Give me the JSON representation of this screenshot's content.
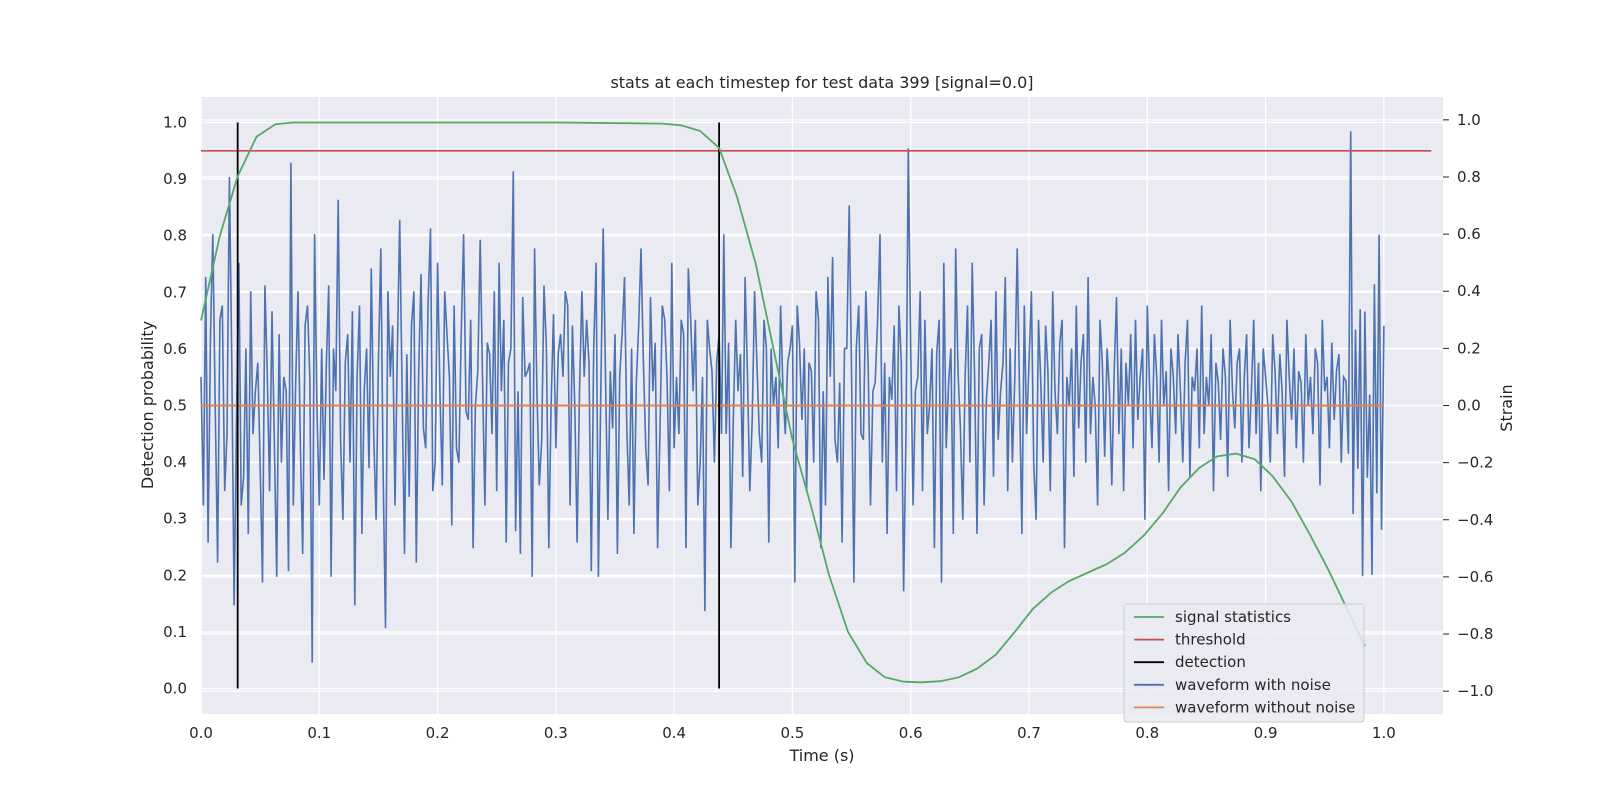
{
  "chart_data": {
    "type": "line",
    "title": "stats at each timestep for test data 399 [signal=0.0]",
    "xlabel": "Time (s)",
    "ylabel": "Detection probability",
    "y2label": "Strain",
    "xlim": [
      0.0,
      1.05
    ],
    "ylim": [
      -0.045,
      1.045
    ],
    "y2lim": [
      -1.08,
      1.08
    ],
    "grid": true,
    "legend_position": "lower-right",
    "x_ticks": [
      "0.0",
      "0.1",
      "0.2",
      "0.3",
      "0.4",
      "0.5",
      "0.6",
      "0.7",
      "0.8",
      "0.9",
      "1.0"
    ],
    "y_ticks": [
      "0.0",
      "0.1",
      "0.2",
      "0.3",
      "0.4",
      "0.5",
      "0.6",
      "0.7",
      "0.8",
      "0.9",
      "1.0"
    ],
    "y2_ticks": [
      "−1.0",
      "−0.8",
      "−0.6",
      "−0.4",
      "−0.2",
      "0.0",
      "0.2",
      "0.4",
      "0.6",
      "0.8",
      "1.0"
    ],
    "series": [
      {
        "name": "signal statistics",
        "axis": "left",
        "color": "#55a868",
        "x": [
          0.0,
          0.016,
          0.031,
          0.047,
          0.063,
          0.078,
          0.094,
          0.11,
          0.2,
          0.3,
          0.39,
          0.406,
          0.422,
          0.438,
          0.453,
          0.469,
          0.484,
          0.5,
          0.516,
          0.531,
          0.547,
          0.563,
          0.578,
          0.594,
          0.609,
          0.625,
          0.641,
          0.656,
          0.672,
          0.688,
          0.703,
          0.719,
          0.734,
          0.75,
          0.766,
          0.781,
          0.797,
          0.813,
          0.828,
          0.844,
          0.859,
          0.875,
          0.891,
          0.906,
          0.922,
          0.938,
          0.953,
          0.969,
          0.984
        ],
        "y": [
          0.65,
          0.8,
          0.905,
          0.975,
          0.997,
          1.0,
          1.0,
          1.0,
          1.0,
          1.0,
          0.998,
          0.995,
          0.985,
          0.955,
          0.87,
          0.75,
          0.6,
          0.44,
          0.32,
          0.2,
          0.1,
          0.045,
          0.02,
          0.012,
          0.011,
          0.013,
          0.02,
          0.035,
          0.06,
          0.1,
          0.14,
          0.17,
          0.19,
          0.205,
          0.22,
          0.24,
          0.27,
          0.31,
          0.355,
          0.39,
          0.41,
          0.415,
          0.405,
          0.375,
          0.33,
          0.27,
          0.21,
          0.14,
          0.075
        ]
      },
      {
        "name": "threshold",
        "axis": "left",
        "color": "#c44e52",
        "x": [
          0.0,
          1.04
        ],
        "y": [
          0.95,
          0.95
        ]
      },
      {
        "name": "detection",
        "axis": "left",
        "color": "#000000",
        "segments": [
          {
            "x": 0.031,
            "y0": 0.0,
            "y1": 1.0
          },
          {
            "x": 0.438,
            "y0": 0.0,
            "y1": 1.0
          }
        ]
      },
      {
        "name": "waveform with noise",
        "axis": "right",
        "color": "#4c72b0",
        "x_start": 0.0,
        "x_step": 0.002,
        "y": [
          0.1,
          -0.35,
          0.45,
          -0.48,
          0.25,
          0.6,
          0.0,
          -0.55,
          0.3,
          0.35,
          -0.3,
          -0.1,
          0.8,
          0.15,
          -0.7,
          -0.05,
          0.5,
          -0.35,
          -0.25,
          0.2,
          -0.45,
          0.4,
          -0.1,
          0.05,
          0.15,
          -0.2,
          -0.62,
          0.42,
          0.12,
          -0.3,
          0.33,
          -0.12,
          -0.6,
          0.25,
          -0.2,
          0.1,
          0.05,
          -0.58,
          0.85,
          -0.35,
          0.07,
          0.4,
          -0.15,
          -0.52,
          0.28,
          0.35,
          0.1,
          -0.9,
          0.6,
          0.0,
          -0.35,
          0.2,
          -0.26,
          0.15,
          0.42,
          -0.6,
          0.2,
          0.05,
          0.72,
          -0.12,
          -0.4,
          0.15,
          0.25,
          -0.2,
          0.33,
          -0.7,
          0.1,
          0.35,
          -0.45,
          0.05,
          0.2,
          -0.22,
          0.48,
          -0.1,
          -0.4,
          0.15,
          0.55,
          -0.25,
          -0.78,
          0.4,
          0.1,
          0.28,
          -0.35,
          0.2,
          0.65,
          0.05,
          -0.52,
          0.18,
          -0.32,
          0.28,
          0.4,
          -0.55,
          0.1,
          0.46,
          -0.08,
          -0.15,
          0.36,
          0.62,
          -0.3,
          -0.2,
          0.5,
          0.05,
          -0.28,
          0.4,
          0.25,
          0.1,
          -0.42,
          0.35,
          -0.15,
          -0.2,
          0.25,
          0.6,
          -0.02,
          -0.05,
          0.3,
          -0.5,
          0.0,
          0.12,
          0.58,
          0.1,
          -0.35,
          0.22,
          0.18,
          -0.1,
          0.4,
          -0.3,
          0.5,
          0.05,
          0.3,
          -0.48,
          0.15,
          0.2,
          0.82,
          -0.44,
          0.05,
          -0.52,
          0.38,
          0.1,
          0.12,
          0.15,
          -0.6,
          0.55,
          0.05,
          -0.28,
          -0.12,
          0.42,
          0.2,
          -0.5,
          0.0,
          0.32,
          -0.15,
          0.18,
          0.25,
          0.1,
          0.4,
          0.35,
          -0.35,
          0.28,
          0.0,
          -0.48,
          0.05,
          0.4,
          0.1,
          0.3,
          0.15,
          -0.58,
          0.2,
          0.5,
          -0.6,
          0.05,
          0.62,
          0.1,
          -0.4,
          0.12,
          -0.08,
          0.25,
          -0.52,
          0.1,
          0.25,
          0.45,
          -0.08,
          -0.35,
          0.2,
          -0.45,
          0.08,
          0.28,
          0.55,
          0.15,
          -0.15,
          -0.28,
          0.38,
          0.05,
          0.22,
          -0.5,
          -0.1,
          0.35,
          0.3,
          0.1,
          -0.3,
          0.5,
          -0.15,
          0.1,
          -0.1,
          0.3,
          0.25,
          -0.5,
          0.48,
          0.3,
          0.05,
          0.3,
          -0.35,
          -0.2,
          0.1,
          -0.72,
          0.3,
          0.2,
          0.12,
          -0.2,
          0.15,
          0.25,
          -0.1,
          0.6,
          -0.1,
          0.22,
          -0.5,
          -0.05,
          0.3,
          0.05,
          0.18,
          -0.25,
          0.45,
          0.1,
          -0.3,
          -0.05,
          0.4,
          0.15,
          -0.1,
          -0.2,
          0.3,
          0.2,
          -0.48,
          0.2,
          0.0,
          0.1,
          -0.15,
          0.35,
          0.05,
          -0.1,
          0.15,
          0.2,
          0.28,
          -0.62,
          0.35,
          0.22,
          -0.05,
          0.2,
          -0.3,
          0.15,
          0.12,
          -0.2,
          0.4,
          0.3,
          -0.5,
          0.05,
          -0.35,
          0.45,
          0.1,
          0.52,
          -0.12,
          -0.2,
          0.08,
          -0.48,
          0.2,
          0.2,
          0.7,
          0.1,
          -0.62,
          0.2,
          0.35,
          -0.1,
          -0.12,
          0.4,
          0.15,
          -0.35,
          0.05,
          0.08,
          0.3,
          0.6,
          -0.2,
          0.15,
          -0.45,
          0.1,
          0.02,
          0.28,
          -0.3,
          0.35,
          0.15,
          -0.65,
          -0.1,
          0.9,
          0.2,
          -0.35,
          0.05,
          0.1,
          0.4,
          -0.3,
          0.3,
          -0.1,
          0.0,
          0.2,
          -0.5,
          0.18,
          0.3,
          -0.62,
          0.5,
          -0.15,
          0.08,
          0.2,
          -0.45,
          0.55,
          0.12,
          -0.08,
          -0.4,
          0.1,
          0.35,
          -0.2,
          0.5,
          0.1,
          -0.45,
          0.2,
          0.25,
          -0.35,
          0.02,
          0.15,
          0.3,
          -0.25,
          0.4,
          -0.12,
          0.05,
          0.15,
          0.45,
          -0.3,
          0.2,
          -0.2,
          0.1,
          0.55,
          0.05,
          -0.45,
          0.35,
          -0.1,
          0.15,
          0.4,
          -0.2,
          -0.4,
          0.3,
          0.08,
          -0.2,
          0.28,
          0.12,
          -0.3,
          0.4,
          0.05,
          -0.1,
          0.22,
          0.3,
          -0.5,
          0.1,
          0.0,
          0.2,
          -0.25,
          0.35,
          -0.08,
          0.15,
          0.25,
          -0.2,
          0.45,
          -0.1,
          0.1,
          0.0,
          -0.35,
          0.3,
          0.15,
          -0.18,
          0.2,
          0.05,
          -0.28,
          0.12,
          0.38,
          -0.1,
          0.2,
          -0.3,
          0.15,
          0.0,
          0.25,
          -0.15,
          0.3,
          -0.05,
          0.1,
          0.2,
          -0.4,
          0.35,
          0.05,
          -0.15,
          0.25,
          0.1,
          -0.2,
          0.3,
          0.0,
          0.12,
          -0.3,
          0.2,
          0.1,
          -0.1,
          0.25,
          0.05,
          -0.2,
          0.15,
          0.3,
          -0.25,
          0.1,
          0.05,
          0.2,
          -0.15,
          0.35,
          -0.1,
          0.1,
          0.0,
          0.25,
          -0.3,
          0.15,
          0.08,
          -0.12,
          0.2,
          0.1,
          -0.25,
          0.3,
          0.05,
          -0.08,
          0.15,
          0.2,
          -0.2,
          0.1,
          0.25,
          -0.15,
          0.05,
          0.3,
          -0.1,
          0.15,
          -0.3,
          0.2,
          0.1,
          0.0,
          -0.2,
          0.25,
          0.12,
          -0.1,
          0.18,
          0.05,
          -0.25,
          0.3,
          0.1,
          -0.05,
          0.2,
          -0.15,
          0.12,
          0.08,
          -0.2,
          0.25,
          0.0,
          0.1,
          -0.1,
          0.2,
          0.15,
          -0.28,
          0.3,
          0.05,
          0.1,
          -0.15,
          0.22,
          -0.05,
          0.12,
          0.18,
          -0.2,
          0.1
        ],
        "y_extrema_sample": "values continue as noisy alternation between about -0.95 and 0.95 up to x = 1.0"
      },
      {
        "name": "waveform without noise",
        "axis": "right",
        "color": "#dd8452",
        "x": [
          0.0,
          1.0
        ],
        "y": [
          0.0,
          0.0
        ]
      }
    ],
    "legend": [
      "signal statistics",
      "threshold",
      "detection",
      "waveform with noise",
      "waveform without noise"
    ]
  }
}
